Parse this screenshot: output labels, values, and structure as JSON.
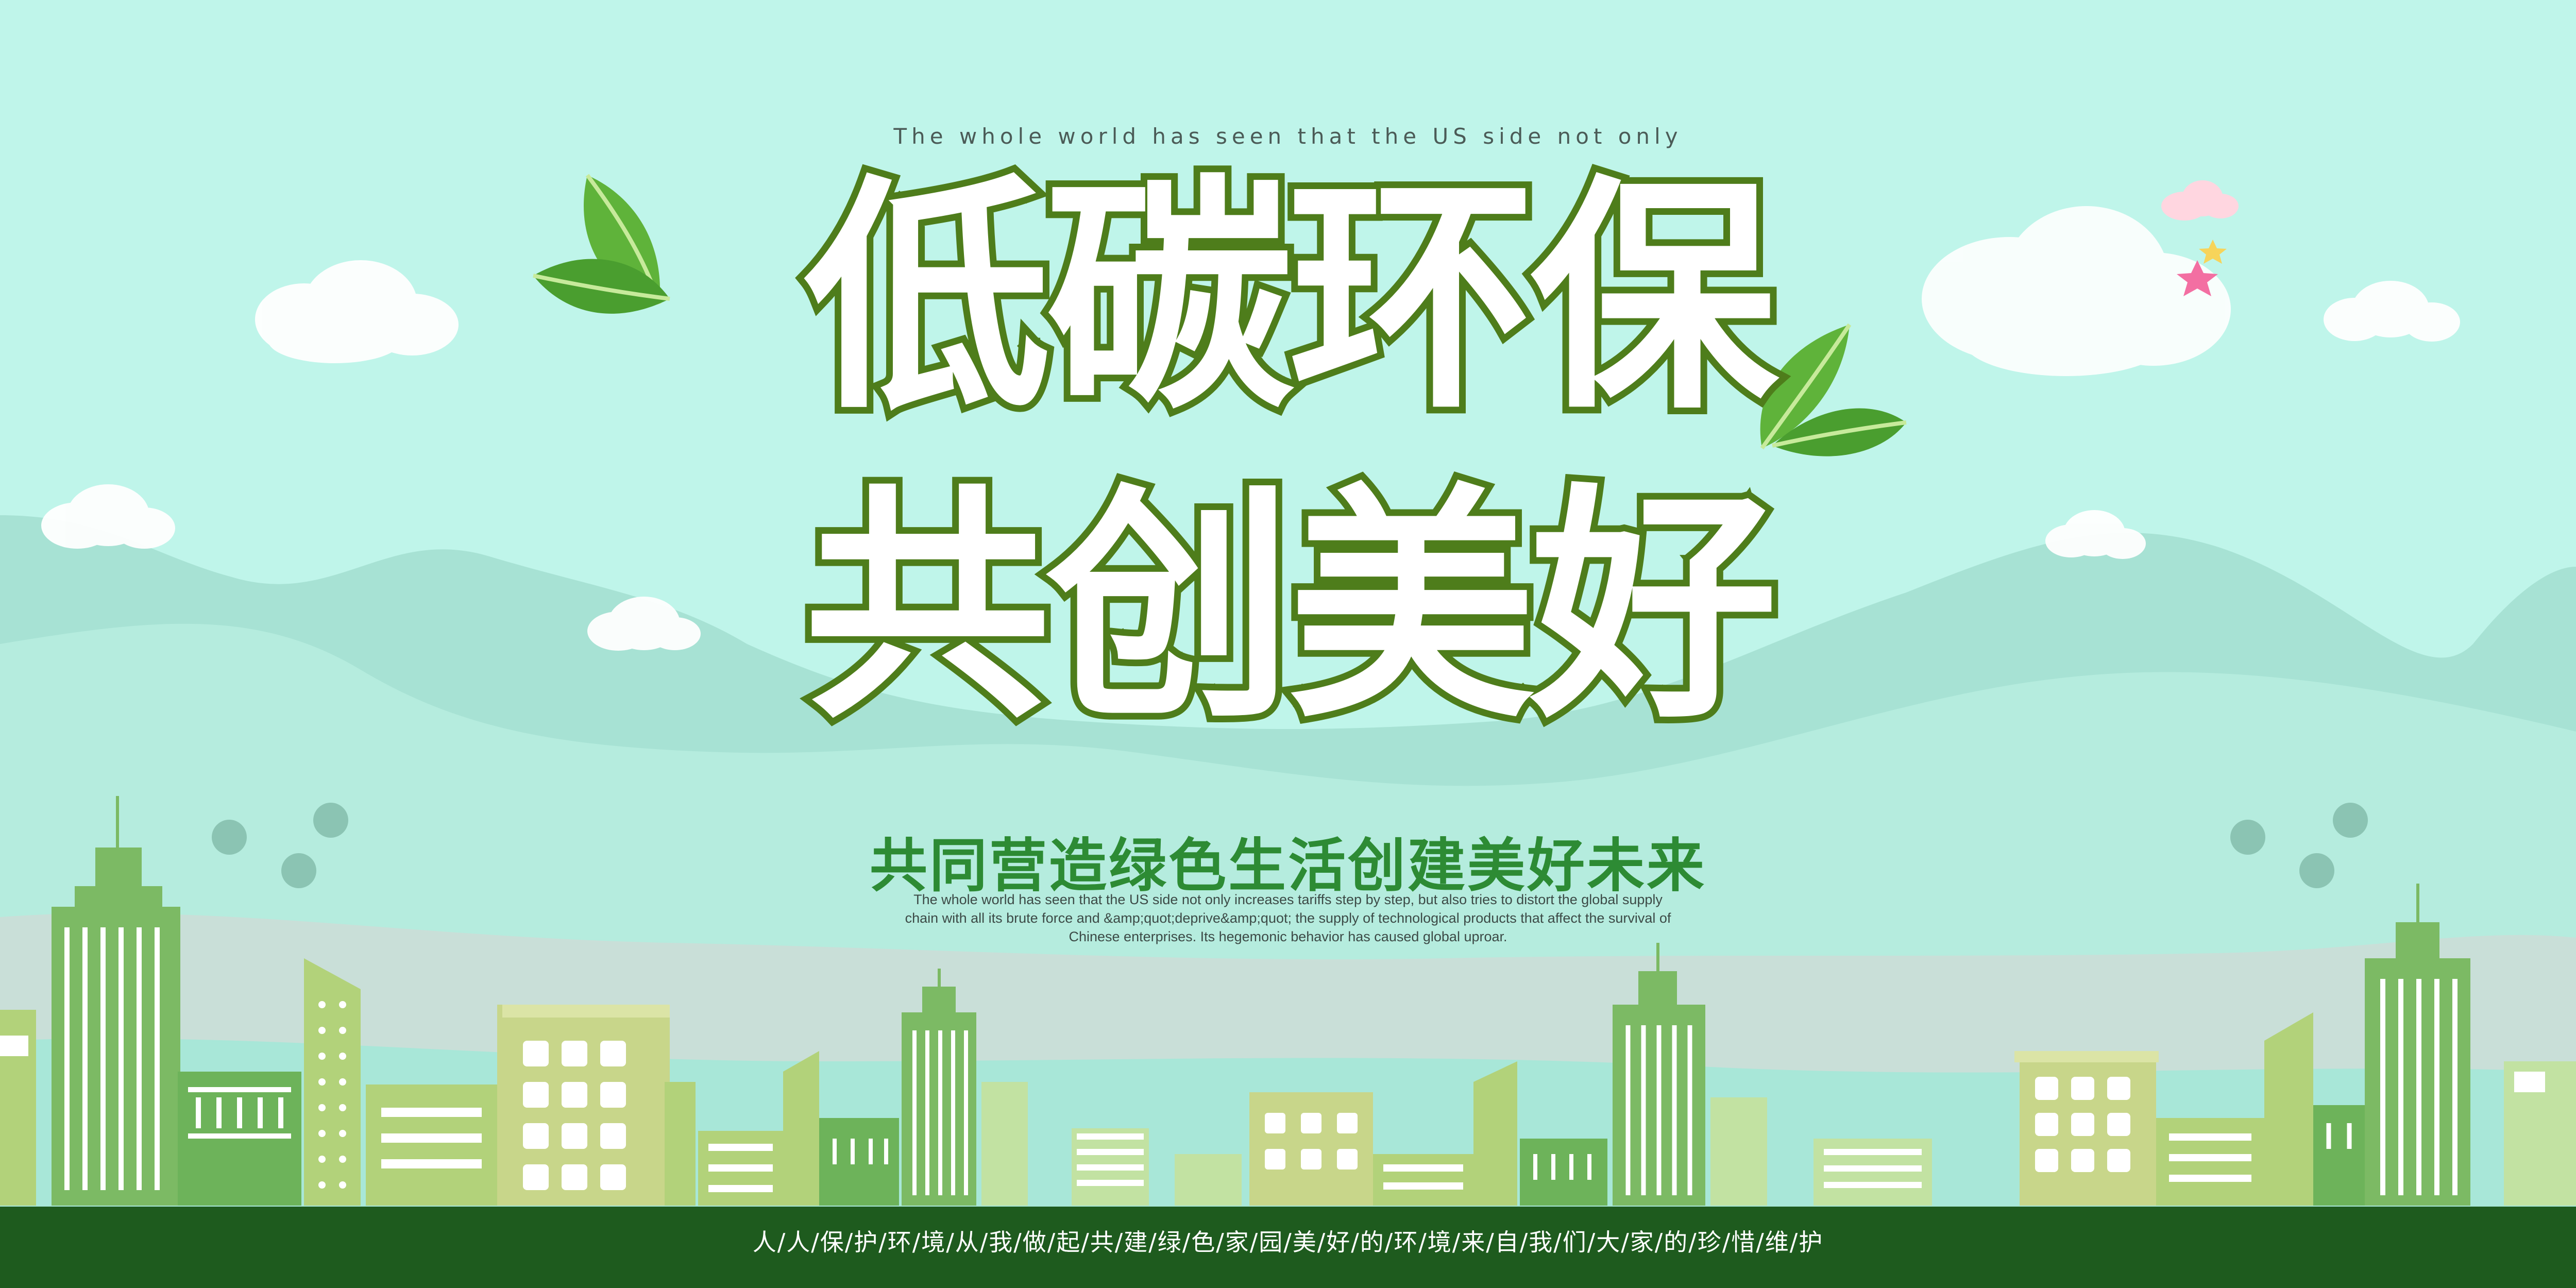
{
  "poster": {
    "kicker": "The whole world has seen that the US side not only",
    "headline_line1": "低碳环保",
    "headline_line2": "共创美好",
    "slogan": "共同营造绿色生活创建美好未来",
    "body_text": "The whole world has seen that the US side not only increases tariffs step by step, but also tries to distort the global supply chain with all its brute force and &amp;quot;deprive&amp;quot; the supply of technological products that affect the survival of Chinese enterprises. Its hegemonic behavior has caused global uproar.",
    "footer_text": "人/人/保/护/环/境/从/我/做/起/共/建/绿/色/家/园/美/好/的/环/境/来/自/我/们/大/家/的/珍/惜/维/护"
  },
  "colors": {
    "sky": "#bff5ea",
    "mountain_back": "#a7e2d4",
    "mountain_front": "#b5ecde",
    "building_green": "#7cba64",
    "building_lime": "#b2d27a",
    "building_khaki": "#c8d68a",
    "headline_stroke": "#4e7d1b",
    "slogan": "#2d8b34",
    "footer": "#1e5b1e"
  },
  "decorations": [
    "cloud-icon",
    "leaf-icon",
    "star-icon",
    "city-skyline"
  ]
}
